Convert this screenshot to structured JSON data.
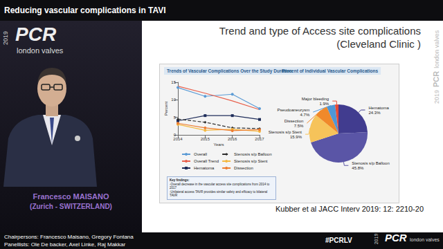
{
  "slide": {
    "header": "Reducing vascular complications in TAVI",
    "title": [
      "Trend and type of Access site complications",
      "(Cleveland Clinic )"
    ],
    "speaker": {
      "name": "Francesco MAISANO",
      "location": "(Zurich - SWITZERLAND)"
    },
    "citation": "Kubber et al JACC Interv 2019: 12: 2210-20",
    "chairpersons": "Chairpersons: Francesco Maisano, Gregory Fontana",
    "panellists": "Panellists: Ole De backer, Axel Linke, Raj Makkar",
    "hashtag": "#PCRLV",
    "logo": {
      "year": "2019",
      "brand": "PCR",
      "subtitle": "london valves"
    },
    "key_findings": {
      "heading": "Key findings:",
      "items": [
        "-Overall decrease in the vascular access site complications from 2014 to 2017",
        "-Unilateral access TAVR provides similar safety and efficacy to bilateral TAVR"
      ]
    }
  },
  "chart_data": [
    {
      "type": "line",
      "title": "Trends of Vascular Complications Over the Study Duration",
      "x_label": "Years",
      "y_label": "Percent",
      "categories": [
        "2014",
        "2015",
        "2016",
        "2017"
      ],
      "ylim": [
        0,
        15
      ],
      "yticks": [
        0,
        5,
        10,
        15
      ],
      "grid": false,
      "legend": "bottom",
      "series": [
        {
          "name": "Overall",
          "color": "#5b9bd5",
          "marker": "circle",
          "line_style": "solid",
          "values": [
            13.5,
            11,
            11.6,
            7.5
          ]
        },
        {
          "name": "Overall Trend",
          "color": "#e8604c",
          "marker": "none",
          "line_style": "solid",
          "values": [
            13.9,
            11.9,
            9.7,
            7.2
          ]
        },
        {
          "name": "Hematoma",
          "color": "#1f2d5a",
          "marker": "square",
          "line_style": "solid",
          "values": [
            4,
            5.5,
            5.5,
            4.4
          ]
        },
        {
          "name": "Stenosis s/p Balloon",
          "color": "#2e2e2e",
          "marker": "diamond",
          "line_style": "dashed",
          "values": [
            4.5,
            3.6,
            2,
            1.8
          ]
        },
        {
          "name": "Stenosis s/p Stent",
          "color": "#f4b942",
          "marker": "circle",
          "line_style": "solid",
          "values": [
            3,
            1.3,
            1.6,
            1
          ]
        },
        {
          "name": "Dissection",
          "color": "#ed7d31",
          "marker": "circle",
          "line_style": "solid",
          "values": [
            3.3,
            2,
            1.2,
            1.5
          ]
        }
      ]
    },
    {
      "type": "pie",
      "title": "Percent of Individual Vascular Complications",
      "categories": [
        "Hematoma",
        "Stenosis s/p Balloon",
        "Stenosis s/p Stent",
        "Dissection",
        "Pseudoaneurysm",
        "Major bleeding"
      ],
      "values": [
        24.3,
        45.8,
        15.9,
        7.5,
        4.7,
        1.9
      ],
      "value_labels": [
        "24.3%",
        "45.8%",
        "15.9%",
        "7.5%",
        "4.7%",
        "1.9%"
      ],
      "colors": [
        "#413c8f",
        "#5a55a6",
        "#f6c35a",
        "#f0892a",
        "#4f97d6",
        "#e64a35"
      ],
      "data_labels": true
    }
  ]
}
